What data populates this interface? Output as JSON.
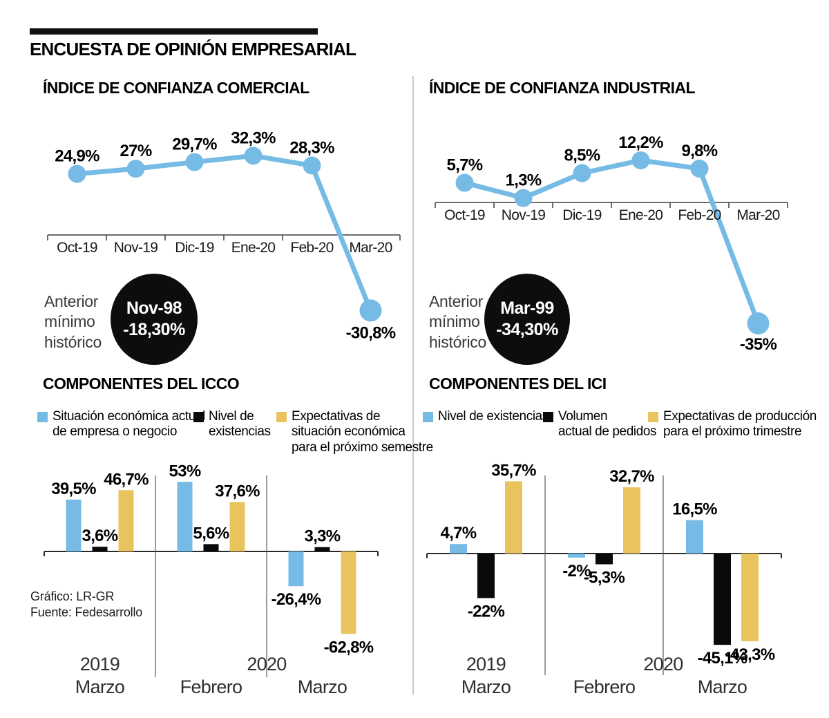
{
  "page": {
    "title": "ENCUESTA DE OPINIÓN EMPRESARIAL"
  },
  "credits": {
    "line1": "Gráfico: LR-GR",
    "line2": "Fuente: Fedesarrollo"
  },
  "colors": {
    "blue": "#76BBE5",
    "yellow": "#E9C45E",
    "black": "#0A0A0A",
    "badge_bg": "#0D0D0D",
    "divider": "#C9C9C9"
  },
  "chart_data": [
    {
      "id": "confianza_comercial",
      "type": "line",
      "title": "ÍNDICE DE CONFIANZA COMERCIAL",
      "x": [
        "Oct-19",
        "Nov-19",
        "Dic-19",
        "Ene-20",
        "Feb-20",
        "Mar-20"
      ],
      "values": [
        24.9,
        27,
        29.7,
        32.3,
        28.3,
        -30.8
      ],
      "point_labels": [
        "24,9%",
        "27%",
        "29,7%",
        "32,3%",
        "28,3%",
        "-30,8%"
      ],
      "ylim": [
        -40,
        40
      ],
      "grid": false,
      "annotation": {
        "intro": "Anterior\nmínimo\nhistórico",
        "period": "Nov-98",
        "value": "-18,30%"
      }
    },
    {
      "id": "confianza_industrial",
      "type": "line",
      "title": "ÍNDICE DE CONFIANZA INDUSTRIAL",
      "x": [
        "Oct-19",
        "Nov-19",
        "Dic-19",
        "Ene-20",
        "Feb-20",
        "Mar-20"
      ],
      "values": [
        5.7,
        1.3,
        8.5,
        12.2,
        9.8,
        -35
      ],
      "point_labels": [
        "5,7%",
        "1,3%",
        "8,5%",
        "12,2%",
        "9,8%",
        "-35%"
      ],
      "ylim": [
        -40,
        20
      ],
      "grid": false,
      "annotation": {
        "intro": "Anterior\nmínimo\nhistórico",
        "period": "Mar-99",
        "value": "-34,30%"
      }
    },
    {
      "id": "componentes_icco",
      "type": "bar",
      "title": "COMPONENTES DEL ICCO",
      "legend": [
        {
          "color": "blue",
          "label": "Situación económica actual\nde empresa o negocio"
        },
        {
          "color": "black",
          "label": "Nivel de\nexistencias"
        },
        {
          "color": "yellow",
          "label": "Expectativas de\nsituación económica\npara el próximo semestre"
        }
      ],
      "series_order": [
        "blue",
        "black",
        "yellow"
      ],
      "groups": [
        {
          "year": "2019",
          "month": "Marzo",
          "values": [
            39.5,
            3.6,
            46.7
          ],
          "labels": [
            "39,5%",
            "3,6%",
            "46,7%"
          ]
        },
        {
          "year": "2020",
          "month": "Febrero",
          "values": [
            53,
            5.6,
            37.6
          ],
          "labels": [
            "53%",
            "5,6%",
            "37,6%"
          ]
        },
        {
          "year": "2020",
          "month": "Marzo",
          "values": [
            -26.4,
            3.3,
            -62.8
          ],
          "labels": [
            "-26,4%",
            "3,3%",
            "-62,8%"
          ]
        }
      ],
      "ylim": [
        -70,
        60
      ],
      "grid": false
    },
    {
      "id": "componentes_ici",
      "type": "bar",
      "title": "COMPONENTES DEL ICI",
      "legend": [
        {
          "color": "blue",
          "label": "Nivel de existencias"
        },
        {
          "color": "black",
          "label": "Volumen\nactual de pedidos"
        },
        {
          "color": "yellow",
          "label": "Expectativas de producción\npara el próximo trimestre"
        }
      ],
      "series_order": [
        "blue",
        "black",
        "yellow"
      ],
      "groups": [
        {
          "year": "2019",
          "month": "Marzo",
          "values": [
            4.7,
            -22,
            35.7
          ],
          "labels": [
            "4,7%",
            "-22%",
            "35,7%"
          ]
        },
        {
          "year": "2020",
          "month": "Febrero",
          "values": [
            -2,
            -5.3,
            32.7
          ],
          "labels": [
            "-2%",
            "-5,3%",
            "32,7%"
          ]
        },
        {
          "year": "2020",
          "month": "Marzo",
          "values": [
            16.5,
            -45.1,
            -43.3
          ],
          "labels": [
            "16,5%",
            "-45,1%",
            "-43,3%"
          ]
        }
      ],
      "ylim": [
        -50,
        40
      ],
      "grid": false
    }
  ]
}
